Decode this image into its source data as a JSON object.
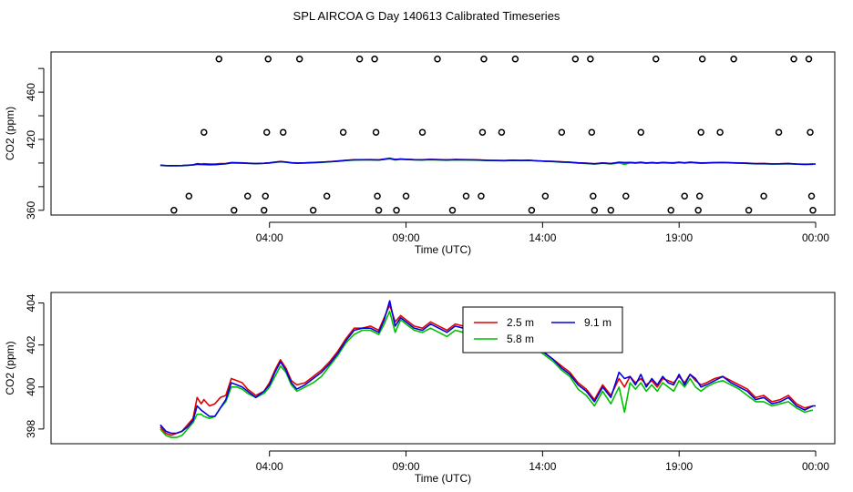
{
  "title": "SPL AIRCOA G  Day 140613  Calibrated Timeseries",
  "colors": {
    "red": "#e00000",
    "green": "#00c000",
    "blue": "#0000e0",
    "axis": "#000000"
  },
  "chart_data": [
    {
      "type": "scatter",
      "panel": "top",
      "xlabel": "Time (UTC)",
      "ylabel": "CO2 (ppm)",
      "xlim": [
        -4.0,
        24.7
      ],
      "ylim": [
        356,
        494
      ],
      "xticks": [
        {
          "value": 4,
          "label": "04:00"
        },
        {
          "value": 9,
          "label": "09:00"
        },
        {
          "value": 14,
          "label": "14:00"
        },
        {
          "value": 19,
          "label": "19:00"
        },
        {
          "value": 24,
          "label": "00:00"
        }
      ],
      "yticks": [
        {
          "value": 360,
          "label": "360"
        },
        {
          "value": 380,
          "label": ""
        },
        {
          "value": 400,
          "label": ""
        },
        {
          "value": 420,
          "label": "420"
        },
        {
          "value": 440,
          "label": ""
        },
        {
          "value": 460,
          "label": "460"
        },
        {
          "value": 480,
          "label": ""
        }
      ],
      "calibration_points": [
        {
          "x": 0.5,
          "y": 360
        },
        {
          "x": 1.05,
          "y": 372
        },
        {
          "x": 1.6,
          "y": 426
        },
        {
          "x": 2.15,
          "y": 488
        },
        {
          "x": 2.7,
          "y": 360
        },
        {
          "x": 3.2,
          "y": 372
        },
        {
          "x": 3.8,
          "y": 360
        },
        {
          "x": 3.85,
          "y": 372
        },
        {
          "x": 3.9,
          "y": 426
        },
        {
          "x": 3.95,
          "y": 488
        },
        {
          "x": 4.5,
          "y": 426
        },
        {
          "x": 5.1,
          "y": 488
        },
        {
          "x": 5.6,
          "y": 360
        },
        {
          "x": 6.1,
          "y": 372
        },
        {
          "x": 6.7,
          "y": 426
        },
        {
          "x": 7.3,
          "y": 488
        },
        {
          "x": 7.85,
          "y": 488
        },
        {
          "x": 7.9,
          "y": 426
        },
        {
          "x": 7.95,
          "y": 372
        },
        {
          "x": 8.0,
          "y": 360
        },
        {
          "x": 8.65,
          "y": 360
        },
        {
          "x": 9.0,
          "y": 372
        },
        {
          "x": 9.6,
          "y": 426
        },
        {
          "x": 10.15,
          "y": 488
        },
        {
          "x": 10.7,
          "y": 360
        },
        {
          "x": 11.2,
          "y": 372
        },
        {
          "x": 11.75,
          "y": 372
        },
        {
          "x": 11.8,
          "y": 426
        },
        {
          "x": 11.85,
          "y": 488
        },
        {
          "x": 12.5,
          "y": 426
        },
        {
          "x": 13.0,
          "y": 488
        },
        {
          "x": 13.6,
          "y": 360
        },
        {
          "x": 14.1,
          "y": 372
        },
        {
          "x": 14.7,
          "y": 426
        },
        {
          "x": 15.2,
          "y": 488
        },
        {
          "x": 15.75,
          "y": 488
        },
        {
          "x": 15.8,
          "y": 426
        },
        {
          "x": 15.85,
          "y": 372
        },
        {
          "x": 15.9,
          "y": 360
        },
        {
          "x": 16.5,
          "y": 360
        },
        {
          "x": 17.05,
          "y": 372
        },
        {
          "x": 17.6,
          "y": 426
        },
        {
          "x": 18.15,
          "y": 488
        },
        {
          "x": 18.7,
          "y": 360
        },
        {
          "x": 19.2,
          "y": 372
        },
        {
          "x": 19.7,
          "y": 360
        },
        {
          "x": 19.75,
          "y": 372
        },
        {
          "x": 19.8,
          "y": 426
        },
        {
          "x": 19.85,
          "y": 488
        },
        {
          "x": 20.5,
          "y": 426
        },
        {
          "x": 21.0,
          "y": 488
        },
        {
          "x": 21.55,
          "y": 360
        },
        {
          "x": 22.1,
          "y": 372
        },
        {
          "x": 22.65,
          "y": 426
        },
        {
          "x": 23.2,
          "y": 488
        },
        {
          "x": 23.75,
          "y": 488
        },
        {
          "x": 23.8,
          "y": 426
        },
        {
          "x": 23.85,
          "y": 372
        },
        {
          "x": 23.9,
          "y": 360
        }
      ],
      "baseline_series_note": "series lines repeat the bottom-panel series on this scale"
    },
    {
      "type": "line",
      "panel": "bottom",
      "xlabel": "Time (UTC)",
      "ylabel": "CO2 (ppm)",
      "xlim": [
        -4.0,
        24.7
      ],
      "ylim": [
        397.3,
        404.5
      ],
      "xticks": [
        {
          "value": 4,
          "label": "04:00"
        },
        {
          "value": 9,
          "label": "09:00"
        },
        {
          "value": 14,
          "label": "14:00"
        },
        {
          "value": 19,
          "label": "19:00"
        },
        {
          "value": 24,
          "label": "00:00"
        }
      ],
      "yticks": [
        {
          "value": 398,
          "label": "398"
        },
        {
          "value": 400,
          "label": "400"
        },
        {
          "value": 402,
          "label": "402"
        },
        {
          "value": 404,
          "label": "404"
        }
      ],
      "legend": {
        "placement": "upper-center-right",
        "entries": [
          "2.5 m",
          "5.8 m",
          "9.1 m"
        ]
      },
      "series": [
        {
          "name": "2.5 m",
          "color": "#e00000",
          "x": [
            0.0,
            0.2,
            0.4,
            0.6,
            0.8,
            1.0,
            1.2,
            1.35,
            1.5,
            1.6,
            1.8,
            2.0,
            2.2,
            2.4,
            2.6,
            2.8,
            3.0,
            3.2,
            3.5,
            3.8,
            4.0,
            4.2,
            4.4,
            4.6,
            4.8,
            5.0,
            5.3,
            5.6,
            5.9,
            6.2,
            6.5,
            6.8,
            7.1,
            7.4,
            7.7,
            8.0,
            8.2,
            8.4,
            8.6,
            8.8,
            9.0,
            9.3,
            9.6,
            9.9,
            10.2,
            10.5,
            10.8,
            11.1,
            11.4,
            11.7,
            12.0,
            12.3,
            12.6,
            12.9,
            13.2,
            13.5,
            13.8,
            14.1,
            14.4,
            14.7,
            15.0,
            15.3,
            15.6,
            15.9,
            16.2,
            16.5,
            16.8,
            17.0,
            17.2,
            17.4,
            17.6,
            17.8,
            18.0,
            18.2,
            18.4,
            18.6,
            18.8,
            19.0,
            19.2,
            19.4,
            19.6,
            19.8,
            20.0,
            20.3,
            20.6,
            20.9,
            21.2,
            21.5,
            21.8,
            22.1,
            22.4,
            22.7,
            23.0,
            23.3,
            23.6,
            23.9
          ],
          "y": [
            398.1,
            397.8,
            397.7,
            397.8,
            397.9,
            398.2,
            398.5,
            399.5,
            399.2,
            399.4,
            399.1,
            399.2,
            399.5,
            399.6,
            400.4,
            400.3,
            400.2,
            399.9,
            399.6,
            399.8,
            400.2,
            400.8,
            401.3,
            400.9,
            400.3,
            400.1,
            400.2,
            400.5,
            400.8,
            401.2,
            401.7,
            402.3,
            402.8,
            402.8,
            402.9,
            402.7,
            403.3,
            403.9,
            403.1,
            403.4,
            403.2,
            402.9,
            402.8,
            403.1,
            402.9,
            402.7,
            403.0,
            402.9,
            402.8,
            402.6,
            402.3,
            402.2,
            402.1,
            402.4,
            402.2,
            402.3,
            401.9,
            401.6,
            401.3,
            401.0,
            400.7,
            400.2,
            399.9,
            399.4,
            400.1,
            399.6,
            400.4,
            400.0,
            400.5,
            400.2,
            400.4,
            400.1,
            400.3,
            400.0,
            400.4,
            400.3,
            400.2,
            400.5,
            400.2,
            400.6,
            400.3,
            400.1,
            400.2,
            400.4,
            400.5,
            400.3,
            400.1,
            399.9,
            399.5,
            399.6,
            399.3,
            399.4,
            399.6,
            399.2,
            399.0,
            399.1
          ]
        },
        {
          "name": "5.8 m",
          "color": "#00c000",
          "x": [
            0.0,
            0.2,
            0.4,
            0.6,
            0.8,
            1.0,
            1.2,
            1.35,
            1.5,
            1.6,
            1.8,
            2.0,
            2.2,
            2.4,
            2.6,
            2.8,
            3.0,
            3.2,
            3.5,
            3.8,
            4.0,
            4.2,
            4.4,
            4.6,
            4.8,
            5.0,
            5.3,
            5.6,
            5.9,
            6.2,
            6.5,
            6.8,
            7.1,
            7.4,
            7.7,
            8.0,
            8.2,
            8.4,
            8.6,
            8.8,
            9.0,
            9.3,
            9.6,
            9.9,
            10.2,
            10.5,
            10.8,
            11.1,
            11.4,
            11.7,
            12.0,
            12.3,
            12.6,
            12.9,
            13.2,
            13.5,
            13.8,
            14.1,
            14.4,
            14.7,
            15.0,
            15.3,
            15.6,
            15.9,
            16.2,
            16.5,
            16.8,
            17.0,
            17.2,
            17.4,
            17.6,
            17.8,
            18.0,
            18.2,
            18.4,
            18.6,
            18.8,
            19.0,
            19.2,
            19.4,
            19.6,
            19.8,
            20.0,
            20.3,
            20.6,
            20.9,
            21.2,
            21.5,
            21.8,
            22.1,
            22.4,
            22.7,
            23.0,
            23.3,
            23.6,
            23.9
          ],
          "y": [
            398.0,
            397.7,
            397.6,
            397.6,
            397.7,
            398.0,
            398.3,
            398.7,
            398.7,
            398.6,
            398.5,
            398.6,
            399.0,
            399.3,
            400.0,
            400.0,
            399.9,
            399.7,
            399.5,
            399.7,
            400.0,
            400.5,
            401.0,
            400.7,
            400.1,
            399.8,
            400.0,
            400.2,
            400.5,
            401.0,
            401.5,
            402.1,
            402.5,
            402.7,
            402.7,
            402.5,
            403.0,
            403.6,
            402.6,
            403.2,
            403.0,
            402.7,
            402.6,
            402.8,
            402.6,
            402.4,
            402.7,
            402.6,
            402.5,
            402.4,
            402.1,
            402.1,
            402.0,
            402.2,
            402.1,
            402.2,
            401.8,
            401.5,
            401.2,
            400.8,
            400.5,
            399.9,
            399.6,
            399.1,
            399.8,
            399.2,
            400.0,
            398.8,
            400.2,
            399.9,
            400.2,
            399.8,
            400.1,
            399.8,
            400.2,
            400.0,
            399.8,
            400.3,
            400.0,
            400.4,
            400.0,
            399.8,
            400.0,
            400.2,
            400.3,
            400.1,
            399.9,
            399.6,
            399.3,
            399.3,
            399.1,
            399.2,
            399.3,
            399.0,
            398.8,
            398.9
          ]
        },
        {
          "name": "9.1 m",
          "color": "#0000e0",
          "x": [
            0.0,
            0.2,
            0.4,
            0.6,
            0.8,
            1.0,
            1.2,
            1.35,
            1.5,
            1.6,
            1.8,
            2.0,
            2.2,
            2.4,
            2.6,
            2.8,
            3.0,
            3.2,
            3.5,
            3.8,
            4.0,
            4.2,
            4.4,
            4.6,
            4.8,
            5.0,
            5.3,
            5.6,
            5.9,
            6.2,
            6.5,
            6.8,
            7.1,
            7.4,
            7.7,
            8.0,
            8.2,
            8.4,
            8.6,
            8.8,
            9.0,
            9.3,
            9.6,
            9.9,
            10.2,
            10.5,
            10.8,
            11.1,
            11.4,
            11.7,
            12.0,
            12.3,
            12.6,
            12.9,
            13.2,
            13.5,
            13.8,
            14.1,
            14.4,
            14.7,
            15.0,
            15.3,
            15.6,
            15.9,
            16.2,
            16.5,
            16.8,
            17.0,
            17.2,
            17.4,
            17.6,
            17.8,
            18.0,
            18.2,
            18.4,
            18.6,
            18.8,
            19.0,
            19.2,
            19.4,
            19.6,
            19.8,
            20.0,
            20.3,
            20.6,
            20.9,
            21.2,
            21.5,
            21.8,
            22.1,
            22.4,
            22.7,
            23.0,
            23.3,
            23.6,
            23.9,
            24.0
          ],
          "y": [
            398.2,
            397.9,
            397.8,
            397.8,
            397.9,
            398.1,
            398.4,
            399.1,
            398.9,
            398.8,
            398.6,
            398.6,
            399.0,
            399.4,
            400.2,
            400.1,
            400.0,
            399.8,
            399.5,
            399.8,
            400.1,
            400.7,
            401.2,
            400.8,
            400.2,
            399.9,
            400.1,
            400.4,
            400.7,
            401.1,
            401.6,
            402.2,
            402.7,
            402.8,
            402.8,
            402.6,
            403.2,
            404.1,
            402.9,
            403.3,
            403.1,
            402.8,
            402.7,
            403.0,
            402.8,
            402.6,
            402.9,
            402.8,
            402.7,
            402.5,
            402.2,
            402.1,
            402.0,
            402.3,
            402.1,
            402.3,
            401.9,
            401.6,
            401.3,
            400.9,
            400.6,
            400.1,
            399.8,
            399.3,
            400.0,
            399.5,
            400.7,
            400.4,
            400.5,
            400.1,
            400.6,
            400.0,
            400.4,
            400.1,
            400.5,
            400.2,
            400.1,
            400.6,
            400.1,
            400.6,
            400.4,
            400.0,
            400.1,
            400.3,
            400.5,
            400.2,
            400.0,
            399.8,
            399.4,
            399.5,
            399.2,
            399.3,
            399.5,
            399.1,
            398.9,
            399.1,
            399.1
          ]
        }
      ]
    }
  ]
}
